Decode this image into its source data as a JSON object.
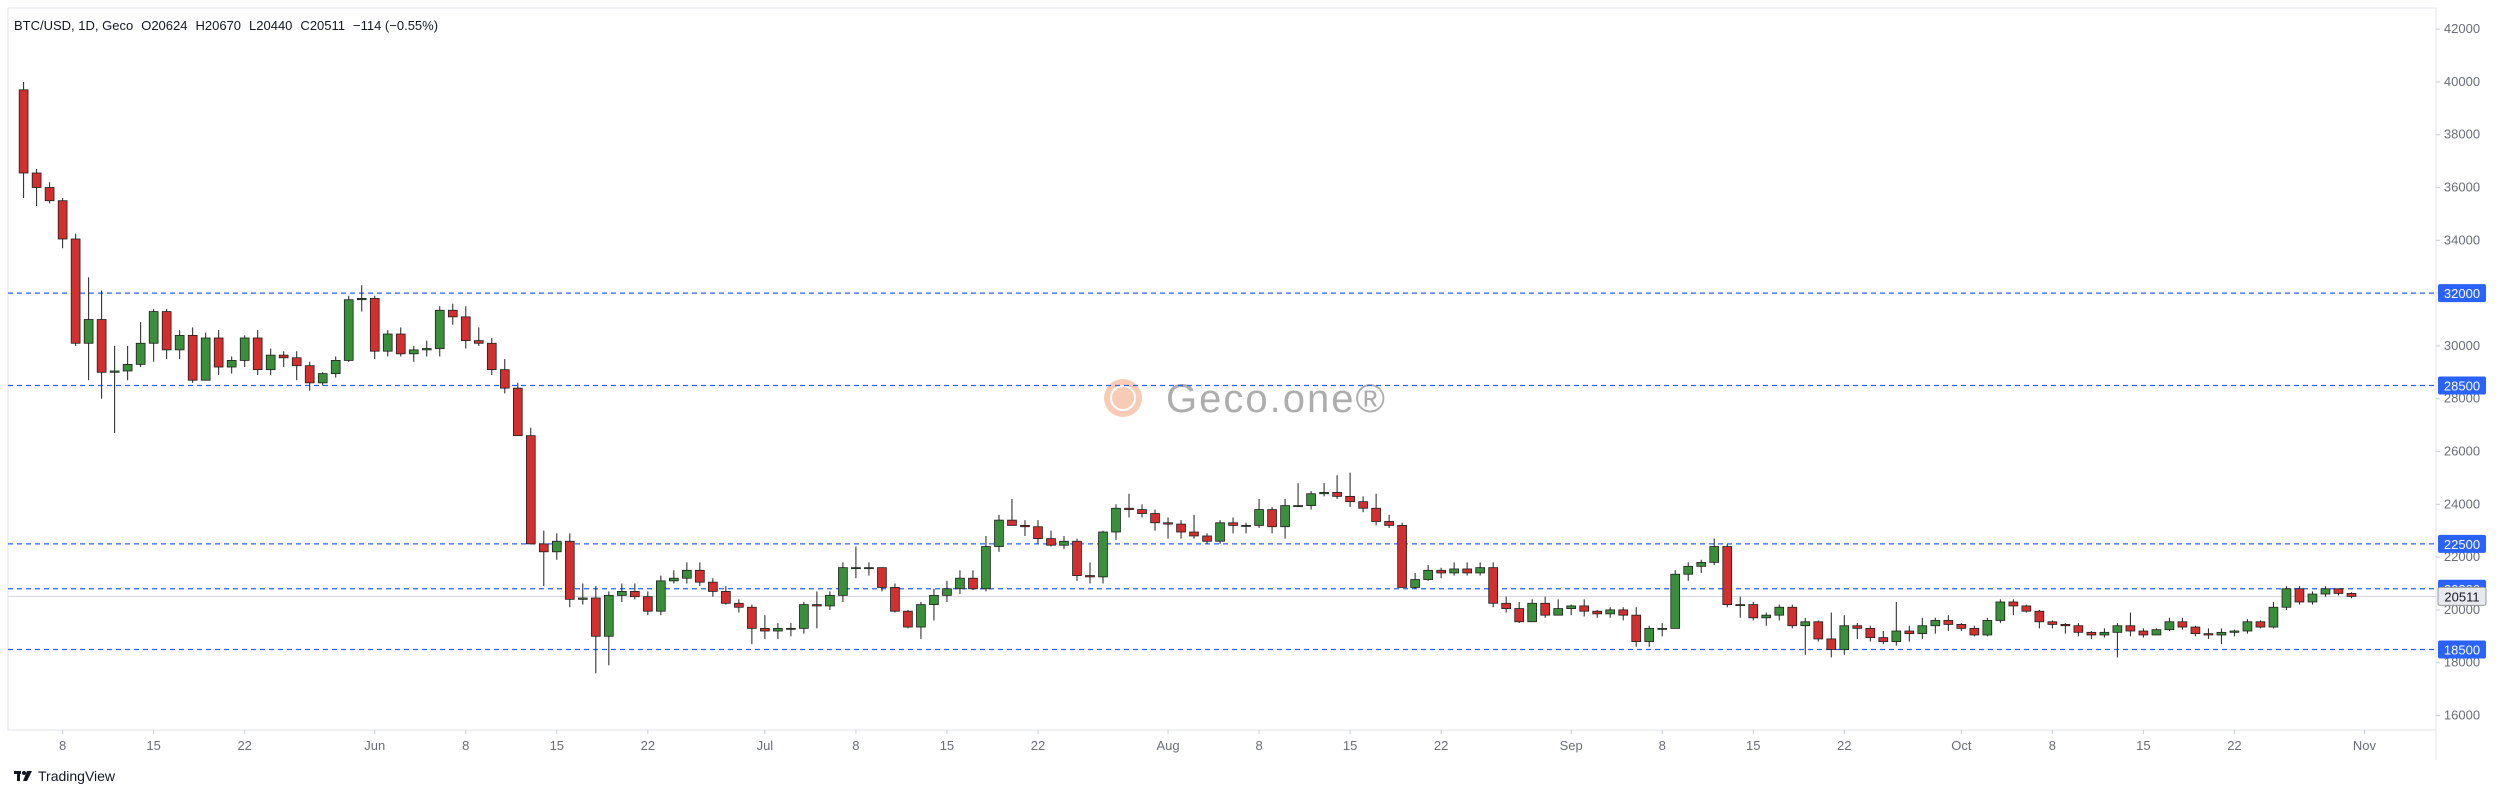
{
  "chart_data": {
    "type": "candlestick",
    "title": "BTC/USD, 1D, Geco",
    "ohlc_labels": [
      "O",
      "H",
      "L",
      "C"
    ],
    "change_label": "−114 (−0.55%)",
    "watermark": "Geco.one®",
    "footer": "TradingView",
    "up_color": "#3a8f3a",
    "down_color": "#d32f2f",
    "level_color": "#2962ff",
    "x": [
      "May 5",
      "May 6",
      "May 7",
      "May 8",
      "May 9",
      "May 10",
      "May 11",
      "May 12",
      "May 13",
      "May 14",
      "May 15",
      "May 16",
      "May 17",
      "May 18",
      "May 19",
      "May 20",
      "May 21",
      "May 22",
      "May 23",
      "May 24",
      "May 25",
      "May 26",
      "May 27",
      "May 28",
      "May 29",
      "May 30",
      "May 31",
      "Jun 1",
      "Jun 2",
      "Jun 3",
      "Jun 4",
      "Jun 5",
      "Jun 6",
      "Jun 7",
      "Jun 8",
      "Jun 9",
      "Jun 10",
      "Jun 11",
      "Jun 12",
      "Jun 13",
      "Jun 14",
      "Jun 15",
      "Jun 16",
      "Jun 17",
      "Jun 18",
      "Jun 19",
      "Jun 20",
      "Jun 21",
      "Jun 22",
      "Jun 23",
      "Jun 24",
      "Jun 25",
      "Jun 26",
      "Jun 27",
      "Jun 28",
      "Jun 29",
      "Jun 30",
      "Jul 1",
      "Jul 2",
      "Jul 3",
      "Jul 4",
      "Jul 5",
      "Jul 6",
      "Jul 7",
      "Jul 8",
      "Jul 9",
      "Jul 10",
      "Jul 11",
      "Jul 12",
      "Jul 13",
      "Jul 14",
      "Jul 15",
      "Jul 16",
      "Jul 17",
      "Jul 18",
      "Jul 19",
      "Jul 20",
      "Jul 21",
      "Jul 22",
      "Jul 23",
      "Jul 24",
      "Jul 25",
      "Jul 26",
      "Jul 27",
      "Jul 28",
      "Jul 29",
      "Jul 30",
      "Jul 31",
      "Aug 1",
      "Aug 2",
      "Aug 3",
      "Aug 4",
      "Aug 5",
      "Aug 6",
      "Aug 7",
      "Aug 8",
      "Aug 9",
      "Aug 10",
      "Aug 11",
      "Aug 12",
      "Aug 13",
      "Aug 14",
      "Aug 15",
      "Aug 16",
      "Aug 17",
      "Aug 18",
      "Aug 19",
      "Aug 20",
      "Aug 21",
      "Aug 22",
      "Aug 23",
      "Aug 24",
      "Aug 25",
      "Aug 26",
      "Aug 27",
      "Aug 28",
      "Aug 29",
      "Aug 30",
      "Aug 31",
      "Sep 1",
      "Sep 2",
      "Sep 3",
      "Sep 4",
      "Sep 5",
      "Sep 6",
      "Sep 7",
      "Sep 8",
      "Sep 9",
      "Sep 10",
      "Sep 11",
      "Sep 12",
      "Sep 13",
      "Sep 14",
      "Sep 15",
      "Sep 16",
      "Sep 17",
      "Sep 18",
      "Sep 19",
      "Sep 20",
      "Sep 21",
      "Sep 22",
      "Sep 23",
      "Sep 24",
      "Sep 25",
      "Sep 26",
      "Sep 27",
      "Sep 28",
      "Sep 29",
      "Sep 30",
      "Oct 1",
      "Oct 2",
      "Oct 3",
      "Oct 4",
      "Oct 5",
      "Oct 6",
      "Oct 7",
      "Oct 8",
      "Oct 9",
      "Oct 10",
      "Oct 11",
      "Oct 12",
      "Oct 13",
      "Oct 14",
      "Oct 15",
      "Oct 16",
      "Oct 17",
      "Oct 18",
      "Oct 19",
      "Oct 20",
      "Oct 21",
      "Oct 22",
      "Oct 23",
      "Oct 24",
      "Oct 25",
      "Oct 26",
      "Oct 27",
      "Oct 28",
      "Oct 29",
      "Oct 30",
      "Oct 31"
    ],
    "open": [
      39700,
      36550,
      36000,
      35500,
      34050,
      30100,
      31000,
      29000,
      29050,
      29300,
      30100,
      31300,
      29850,
      30400,
      28700,
      30300,
      29200,
      29450,
      30300,
      29100,
      29650,
      29550,
      29250,
      28600,
      28950,
      29450,
      31750,
      31800,
      29800,
      30450,
      29700,
      29850,
      29900,
      31350,
      31100,
      30200,
      30100,
      29100,
      28400,
      26600,
      22500,
      22200,
      22600,
      20400,
      20450,
      19000,
      20550,
      20700,
      20500,
      19950,
      21100,
      21200,
      21500,
      21050,
      20700,
      20250,
      20100,
      19300,
      19200,
      19300,
      19300,
      20200,
      20150,
      20550,
      21600,
      21600,
      21600,
      20850,
      19950,
      19350,
      20200,
      20550,
      20800,
      21200,
      20800,
      22400,
      23400,
      23200,
      23150,
      22700,
      22450,
      22600,
      21300,
      21250,
      22950,
      23850,
      23800,
      23650,
      23300,
      23250,
      22950,
      22800,
      22600,
      23300,
      23200,
      23200,
      23800,
      23150,
      23950,
      23950,
      24400,
      24450,
      24300,
      24100,
      23850,
      23350,
      23200,
      20850,
      21150,
      21500,
      21400,
      21550,
      21400,
      21600,
      20250,
      20050,
      19550,
      20250,
      19800,
      20050,
      20150,
      19950,
      19850,
      20000,
      19800,
      18800,
      19300,
      19300,
      21350,
      21650,
      21800,
      22400,
      20200,
      20200,
      19700,
      19800,
      20100,
      19400,
      19550,
      18900,
      18500,
      19400,
      19300,
      18950,
      18800,
      19200,
      19100,
      19400,
      19600,
      19450,
      19300,
      19050,
      19600,
      20300,
      20150,
      19950,
      19550,
      19450,
      19400,
      19150,
      19050,
      19150,
      19400,
      19200,
      19050,
      19250,
      19550,
      19350,
      19100,
      19050,
      19150,
      19200,
      19550,
      19350,
      20100,
      20800,
      20300,
      20600,
      20800,
      20624
    ],
    "high": [
      40000,
      36700,
      36200,
      35600,
      34250,
      32600,
      32100,
      30000,
      30000,
      30900,
      31400,
      31400,
      30600,
      30700,
      30500,
      30600,
      29600,
      30400,
      30600,
      29900,
      29800,
      29800,
      29400,
      29000,
      29600,
      31900,
      32300,
      31900,
      30600,
      30700,
      30000,
      30200,
      31500,
      31600,
      31500,
      30700,
      30300,
      29500,
      28600,
      26900,
      23000,
      22900,
      22900,
      21000,
      20900,
      20700,
      21000,
      21000,
      20700,
      21300,
      21500,
      21800,
      21800,
      21200,
      20900,
      20400,
      20200,
      19800,
      19500,
      19500,
      20300,
      20700,
      20700,
      21800,
      22400,
      21800,
      21600,
      21000,
      20000,
      20300,
      20800,
      21100,
      21500,
      21500,
      22800,
      23600,
      24200,
      23400,
      23400,
      23000,
      22800,
      22700,
      21800,
      23000,
      24000,
      24400,
      24000,
      23800,
      23500,
      23400,
      23600,
      22900,
      23400,
      23500,
      23300,
      24200,
      23900,
      24200,
      24800,
      24500,
      24800,
      25100,
      25200,
      24300,
      24400,
      23600,
      23300,
      21400,
      21700,
      21600,
      21800,
      21800,
      21800,
      21800,
      20500,
      20300,
      20400,
      20500,
      20400,
      20200,
      20400,
      20000,
      20100,
      20100,
      20100,
      19400,
      19500,
      21500,
      21800,
      21900,
      22700,
      22500,
      20500,
      20300,
      19900,
      20200,
      20200,
      19700,
      19600,
      19900,
      19800,
      19500,
      19400,
      19200,
      20300,
      19400,
      19700,
      19700,
      19800,
      19500,
      19400,
      19700,
      20400,
      20400,
      20200,
      20000,
      19600,
      19500,
      19500,
      19200,
      19300,
      19500,
      19900,
      19300,
      19300,
      19700,
      19700,
      19400,
      19300,
      19300,
      19250,
      19650,
      19600,
      20300,
      20900,
      20900,
      20700,
      20900,
      20800,
      20670
    ],
    "low": [
      35600,
      35300,
      35400,
      33700,
      30000,
      28700,
      28000,
      26700,
      28700,
      29200,
      29400,
      29500,
      29500,
      28600,
      28700,
      28900,
      28950,
      29200,
      28900,
      28900,
      29200,
      28700,
      28300,
      28500,
      28800,
      29400,
      31300,
      29500,
      29600,
      29600,
      29400,
      29600,
      29600,
      30800,
      29900,
      30000,
      28900,
      28200,
      26600,
      22500,
      20900,
      21900,
      20100,
      20200,
      17600,
      17900,
      20300,
      20400,
      19800,
      19800,
      21000,
      21000,
      20900,
      20500,
      20200,
      19900,
      18700,
      18900,
      18900,
      19000,
      19100,
      19300,
      20000,
      20300,
      21200,
      21300,
      20700,
      19900,
      19300,
      18900,
      19600,
      20300,
      20600,
      20750,
      20700,
      22200,
      23200,
      22800,
      22500,
      22400,
      22300,
      21100,
      21000,
      21000,
      22650,
      23500,
      23500,
      23000,
      22700,
      22700,
      22700,
      22500,
      22500,
      22900,
      22900,
      23100,
      22900,
      22700,
      23900,
      23800,
      24300,
      24200,
      23900,
      23700,
      23200,
      23100,
      20850,
      20800,
      21100,
      21200,
      21300,
      21300,
      21300,
      20100,
      19900,
      19500,
      19550,
      19700,
      19800,
      19800,
      19750,
      19700,
      19700,
      19600,
      18600,
      18600,
      19000,
      19300,
      21100,
      21400,
      21700,
      20100,
      19700,
      19600,
      19400,
      19600,
      19300,
      18300,
      18800,
      18200,
      18300,
      18900,
      18800,
      18700,
      18650,
      18800,
      18900,
      19100,
      19200,
      19200,
      19000,
      19000,
      19500,
      19800,
      19900,
      19300,
      19300,
      19100,
      19000,
      18900,
      18950,
      18200,
      19000,
      18950,
      19050,
      19200,
      19250,
      19000,
      18900,
      18700,
      19000,
      19100,
      19300,
      19300,
      20000,
      20200,
      20200,
      20500,
      20550,
      20440
    ],
    "close": [
      36550,
      36000,
      35500,
      34050,
      30100,
      31000,
      29000,
      29050,
      29300,
      30100,
      31300,
      29850,
      30400,
      28700,
      30300,
      29200,
      29450,
      30300,
      29100,
      29650,
      29550,
      29250,
      28600,
      28950,
      29450,
      31750,
      31800,
      29800,
      30450,
      29700,
      29850,
      29900,
      31350,
      31100,
      30200,
      30100,
      29100,
      28400,
      26600,
      22500,
      22200,
      22600,
      20400,
      20450,
      19000,
      20550,
      20700,
      20500,
      19950,
      21100,
      21200,
      21500,
      21050,
      20700,
      20250,
      20100,
      19300,
      19200,
      19300,
      19300,
      20200,
      20150,
      20550,
      21600,
      21600,
      21600,
      20850,
      19950,
      19350,
      20200,
      20550,
      20800,
      21200,
      20800,
      22400,
      23400,
      23200,
      23150,
      22700,
      22450,
      22600,
      21300,
      21250,
      22950,
      23850,
      23800,
      23650,
      23300,
      23250,
      22950,
      22800,
      22600,
      23300,
      23200,
      23200,
      23800,
      23150,
      23950,
      23950,
      24400,
      24450,
      24300,
      24100,
      23850,
      23350,
      23200,
      20850,
      21150,
      21500,
      21400,
      21550,
      21400,
      21600,
      20250,
      20050,
      19550,
      20250,
      19800,
      20050,
      20150,
      19950,
      19850,
      20000,
      19800,
      18800,
      19300,
      19300,
      21350,
      21650,
      21800,
      22400,
      20200,
      20200,
      19700,
      19800,
      20100,
      19400,
      19550,
      18900,
      18500,
      19400,
      19300,
      18950,
      18800,
      19200,
      19100,
      19400,
      19600,
      19450,
      19300,
      19050,
      19600,
      20300,
      20150,
      19950,
      19550,
      19450,
      19400,
      19150,
      19050,
      19150,
      19400,
      19200,
      19050,
      19250,
      19550,
      19350,
      19100,
      19050,
      19150,
      19200,
      19550,
      19350,
      20100,
      20800,
      20300,
      20600,
      20800,
      20624,
      20511
    ],
    "levels": [
      32000,
      28500,
      22500,
      20800,
      18500
    ],
    "xlim": [
      -1.2,
      185.5
    ],
    "xticks": [
      {
        "value": 3,
        "label": "8"
      },
      {
        "value": 10,
        "label": "15"
      },
      {
        "value": 17,
        "label": "22"
      },
      {
        "value": 27,
        "label": "Jun"
      },
      {
        "value": 34,
        "label": "8"
      },
      {
        "value": 41,
        "label": "15"
      },
      {
        "value": 48,
        "label": "22"
      },
      {
        "value": 57,
        "label": "Jul"
      },
      {
        "value": 64,
        "label": "8"
      },
      {
        "value": 71,
        "label": "15"
      },
      {
        "value": 78,
        "label": "22"
      },
      {
        "value": 88,
        "label": "Aug"
      },
      {
        "value": 95,
        "label": "8"
      },
      {
        "value": 102,
        "label": "15"
      },
      {
        "value": 109,
        "label": "22"
      },
      {
        "value": 119,
        "label": "Sep"
      },
      {
        "value": 126,
        "label": "8"
      },
      {
        "value": 133,
        "label": "15"
      },
      {
        "value": 140,
        "label": "22"
      },
      {
        "value": 149,
        "label": "Oct"
      },
      {
        "value": 156,
        "label": "8"
      },
      {
        "value": 163,
        "label": "15"
      },
      {
        "value": 170,
        "label": "22"
      },
      {
        "value": 180,
        "label": "Nov"
      }
    ],
    "ylim": [
      15450,
      42800
    ],
    "yticks": [
      16000,
      18000,
      20000,
      22000,
      24000,
      26000,
      28000,
      30000,
      32000,
      34000,
      36000,
      38000,
      40000,
      42000
    ]
  }
}
